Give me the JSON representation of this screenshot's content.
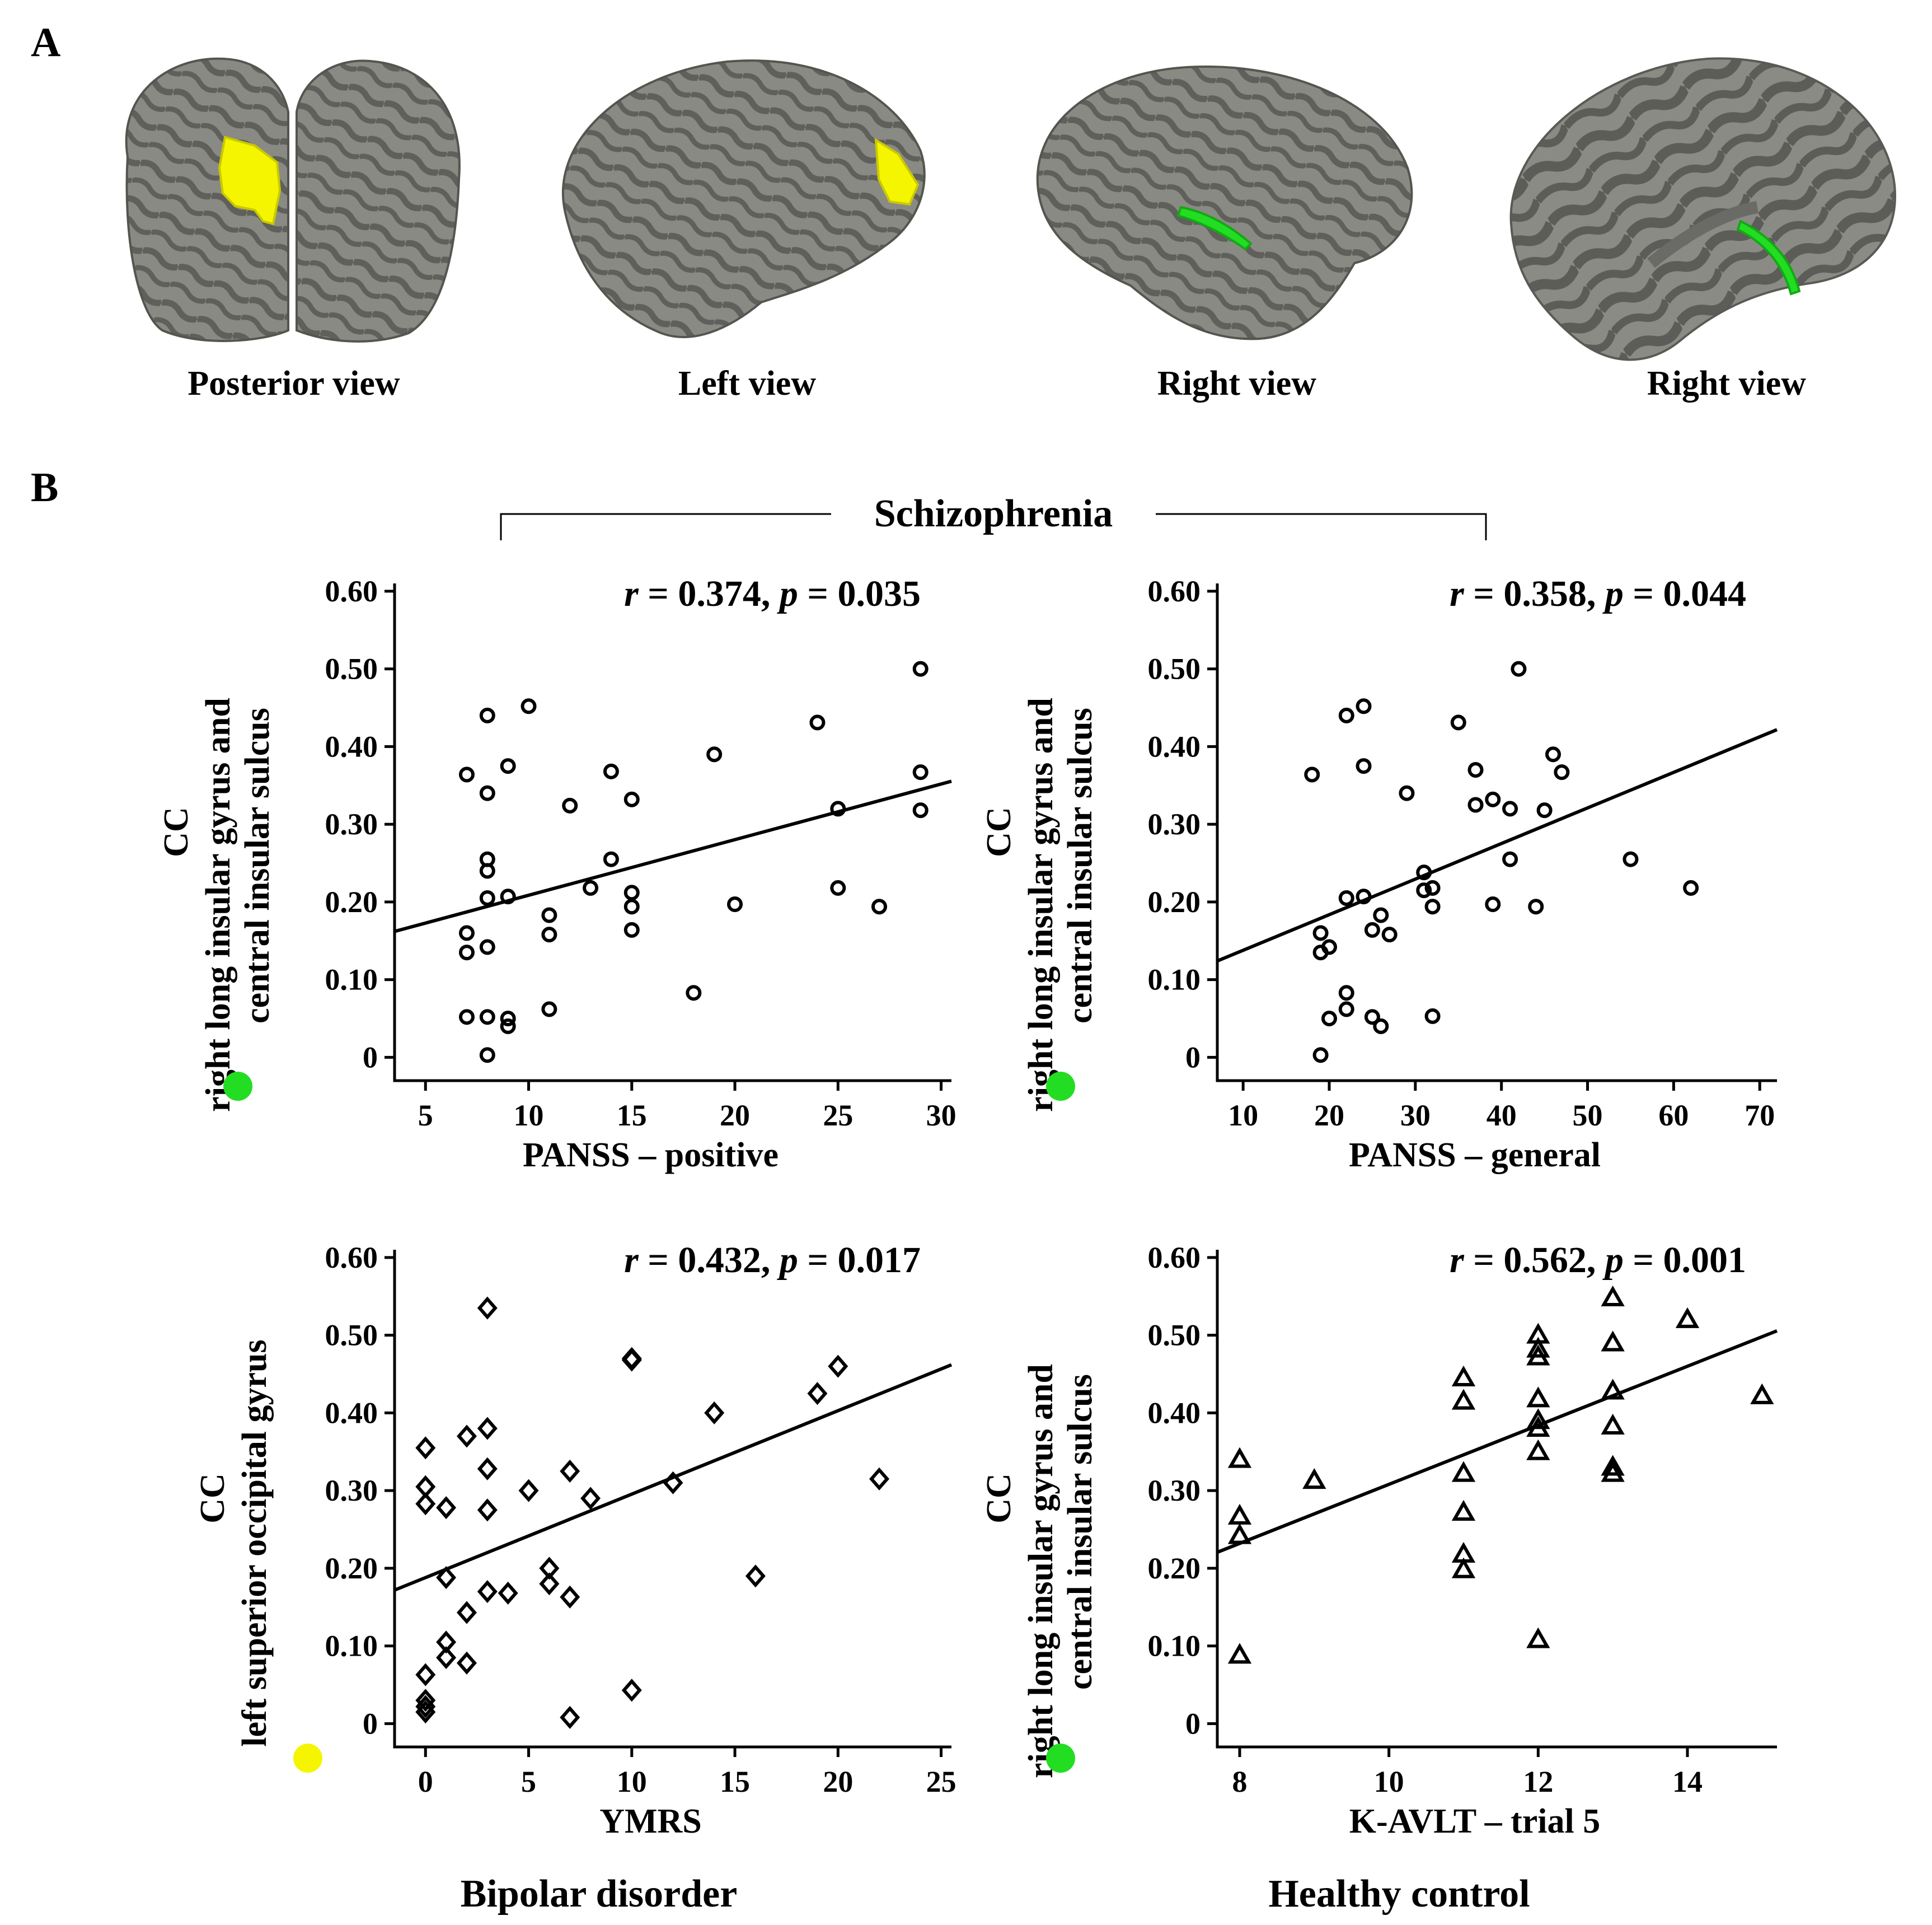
{
  "panel_labels": [
    "A",
    "B"
  ],
  "brain_views": [
    {
      "label": "Posterior view",
      "surface": "pial",
      "highlight": "yellow"
    },
    {
      "label": "Left view",
      "surface": "pial",
      "highlight": "yellow"
    },
    {
      "label": "Right view",
      "surface": "pial",
      "highlight": "green"
    },
    {
      "label": "Right view",
      "surface": "inflated",
      "highlight": "green"
    }
  ],
  "colors": {
    "yellow_region": "#f5f500",
    "green_region": "#22dd22",
    "cortex": "#8a8a85",
    "sulci": "#5a5a57",
    "ink": "#000000"
  },
  "group_labels": {
    "schizophrenia": "Schizophrenia",
    "bipolar": "Bipolar disorder",
    "healthy": "Healthy control"
  },
  "chart_data": [
    {
      "type": "scatter",
      "group": "Schizophrenia",
      "marker": "circle",
      "region_color": "green",
      "stat": "r = 0.374, p = 0.035",
      "ylabel": {
        "cc": "CC",
        "line1": "right long insular gyrus and",
        "line2": "central insular sulcus"
      },
      "xlabel": "PANSS – positive",
      "xlim": [
        3.5,
        30.5
      ],
      "ylim": [
        -0.03,
        0.61
      ],
      "xticks": [
        5,
        10,
        15,
        20,
        25,
        30
      ],
      "yticks": [
        0,
        0.1,
        0.2,
        0.3,
        0.4,
        0.5,
        0.6
      ],
      "ytick_labels": [
        "0",
        "0.10",
        "0.20",
        "0.30",
        "0.40",
        "0.50",
        "0.60"
      ],
      "fit": {
        "slope": 0.00716,
        "intercept": 0.137
      },
      "points": [
        [
          7,
          0.364
        ],
        [
          7,
          0.16
        ],
        [
          7,
          0.135
        ],
        [
          7,
          0.052
        ],
        [
          8,
          0.44
        ],
        [
          8,
          0.34
        ],
        [
          8,
          0.255
        ],
        [
          8,
          0.24
        ],
        [
          8,
          0.205
        ],
        [
          8,
          0.142
        ],
        [
          8,
          0.052
        ],
        [
          8,
          0.003
        ],
        [
          9,
          0.375
        ],
        [
          9,
          0.207
        ],
        [
          9,
          0.05
        ],
        [
          9,
          0.04
        ],
        [
          10,
          0.452
        ],
        [
          11,
          0.183
        ],
        [
          11,
          0.158
        ],
        [
          11,
          0.062
        ],
        [
          12,
          0.324
        ],
        [
          13,
          0.218
        ],
        [
          14,
          0.368
        ],
        [
          14,
          0.255
        ],
        [
          15,
          0.332
        ],
        [
          15,
          0.212
        ],
        [
          15,
          0.194
        ],
        [
          15,
          0.164
        ],
        [
          18,
          0.083
        ],
        [
          19,
          0.39
        ],
        [
          20,
          0.197
        ],
        [
          24,
          0.431
        ],
        [
          25,
          0.32
        ],
        [
          25,
          0.218
        ],
        [
          27,
          0.194
        ],
        [
          29,
          0.5
        ],
        [
          29,
          0.367
        ],
        [
          29,
          0.318
        ]
      ]
    },
    {
      "type": "scatter",
      "group": "Schizophrenia",
      "marker": "circle",
      "region_color": "green",
      "stat": "r = 0.358, p = 0.044",
      "ylabel": {
        "cc": "CC",
        "line1": "right long insular gyrus and",
        "line2": "central insular sulcus"
      },
      "xlabel": "PANSS – general",
      "xlim": [
        7,
        72
      ],
      "ylim": [
        -0.03,
        0.61
      ],
      "xticks": [
        10,
        20,
        30,
        40,
        50,
        60,
        70
      ],
      "yticks": [
        0,
        0.1,
        0.2,
        0.3,
        0.4,
        0.5,
        0.6
      ],
      "ytick_labels": [
        "0",
        "0.10",
        "0.20",
        "0.30",
        "0.40",
        "0.50",
        "0.60"
      ],
      "fit": {
        "slope": 0.00458,
        "intercept": 0.092
      },
      "points": [
        [
          18,
          0.364
        ],
        [
          19,
          0.16
        ],
        [
          19,
          0.135
        ],
        [
          19,
          0.003
        ],
        [
          20,
          0.142
        ],
        [
          20,
          0.05
        ],
        [
          22,
          0.44
        ],
        [
          22,
          0.205
        ],
        [
          22,
          0.083
        ],
        [
          22,
          0.062
        ],
        [
          24,
          0.452
        ],
        [
          24,
          0.375
        ],
        [
          24,
          0.207
        ],
        [
          25,
          0.164
        ],
        [
          25,
          0.052
        ],
        [
          26,
          0.183
        ],
        [
          26,
          0.04
        ],
        [
          27,
          0.158
        ],
        [
          29,
          0.34
        ],
        [
          31,
          0.238
        ],
        [
          31,
          0.215
        ],
        [
          32,
          0.218
        ],
        [
          32,
          0.194
        ],
        [
          32,
          0.053
        ],
        [
          35,
          0.431
        ],
        [
          37,
          0.37
        ],
        [
          37,
          0.325
        ],
        [
          39,
          0.332
        ],
        [
          39,
          0.197
        ],
        [
          41,
          0.32
        ],
        [
          41,
          0.255
        ],
        [
          42,
          0.5
        ],
        [
          44,
          0.194
        ],
        [
          45,
          0.318
        ],
        [
          46,
          0.39
        ],
        [
          47,
          0.367
        ],
        [
          55,
          0.255
        ],
        [
          62,
          0.218
        ]
      ]
    },
    {
      "type": "scatter",
      "group": "Bipolar disorder",
      "marker": "diamond",
      "region_color": "yellow",
      "stat": "r = 0.432, p = 0.017",
      "ylabel": {
        "cc": "CC",
        "line1": "left superior occipital gyrus",
        "line2": ""
      },
      "xlabel": "YMRS",
      "xlim": [
        -1.5,
        25.5
      ],
      "ylim": [
        -0.03,
        0.61
      ],
      "xticks": [
        0,
        5,
        10,
        15,
        20,
        25
      ],
      "yticks": [
        0,
        0.1,
        0.2,
        0.3,
        0.4,
        0.5,
        0.6
      ],
      "ytick_labels": [
        "0",
        "0.10",
        "0.20",
        "0.30",
        "0.40",
        "0.50",
        "0.60"
      ],
      "fit": {
        "slope": 0.01074,
        "intercept": 0.188
      },
      "points": [
        [
          0,
          0.355
        ],
        [
          0,
          0.305
        ],
        [
          0,
          0.283
        ],
        [
          0,
          0.063
        ],
        [
          0,
          0.03
        ],
        [
          0,
          0.022
        ],
        [
          0,
          0.015
        ],
        [
          1,
          0.278
        ],
        [
          1,
          0.188
        ],
        [
          1,
          0.105
        ],
        [
          1,
          0.085
        ],
        [
          2,
          0.37
        ],
        [
          2,
          0.143
        ],
        [
          2,
          0.078
        ],
        [
          3,
          0.535
        ],
        [
          3,
          0.38
        ],
        [
          3,
          0.328
        ],
        [
          3,
          0.275
        ],
        [
          3,
          0.17
        ],
        [
          4,
          0.168
        ],
        [
          5,
          0.3
        ],
        [
          6,
          0.2
        ],
        [
          6,
          0.18
        ],
        [
          7,
          0.325
        ],
        [
          7,
          0.163
        ],
        [
          7,
          0.008
        ],
        [
          8,
          0.29
        ],
        [
          10,
          0.47
        ],
        [
          10,
          0.468
        ],
        [
          10,
          0.043
        ],
        [
          12,
          0.31
        ],
        [
          14,
          0.4
        ],
        [
          16,
          0.19
        ],
        [
          19,
          0.425
        ],
        [
          20,
          0.46
        ],
        [
          22,
          0.315
        ]
      ]
    },
    {
      "type": "scatter",
      "group": "Healthy control",
      "marker": "triangle",
      "region_color": "green",
      "stat": "r = 0.562, p = 0.001",
      "ylabel": {
        "cc": "CC",
        "line1": "right long insular gyrus and",
        "line2": "central insular sulcus"
      },
      "xlabel": "K-AVLT – trial 5",
      "xlim": [
        7.7,
        15.2
      ],
      "ylim": [
        -0.03,
        0.61
      ],
      "xticks": [
        8,
        10,
        12,
        14
      ],
      "yticks": [
        0,
        0.1,
        0.2,
        0.3,
        0.4,
        0.5,
        0.6
      ],
      "ytick_labels": [
        "0",
        "0.10",
        "0.20",
        "0.30",
        "0.40",
        "0.50",
        "0.60"
      ],
      "fit": {
        "slope": 0.038,
        "intercept": -0.072
      },
      "points": [
        [
          8,
          0.34
        ],
        [
          8,
          0.267
        ],
        [
          8,
          0.242
        ],
        [
          8,
          0.088
        ],
        [
          9,
          0.313
        ],
        [
          11,
          0.445
        ],
        [
          11,
          0.415
        ],
        [
          11,
          0.322
        ],
        [
          11,
          0.272
        ],
        [
          11,
          0.218
        ],
        [
          11,
          0.198
        ],
        [
          12,
          0.5
        ],
        [
          12,
          0.482
        ],
        [
          12,
          0.472
        ],
        [
          12,
          0.418
        ],
        [
          12,
          0.39
        ],
        [
          12,
          0.38
        ],
        [
          12,
          0.35
        ],
        [
          12,
          0.108
        ],
        [
          13,
          0.548
        ],
        [
          13,
          0.49
        ],
        [
          13,
          0.428
        ],
        [
          13,
          0.383
        ],
        [
          13,
          0.33
        ],
        [
          13,
          0.322
        ],
        [
          14,
          0.52
        ],
        [
          15,
          0.422
        ]
      ]
    }
  ]
}
